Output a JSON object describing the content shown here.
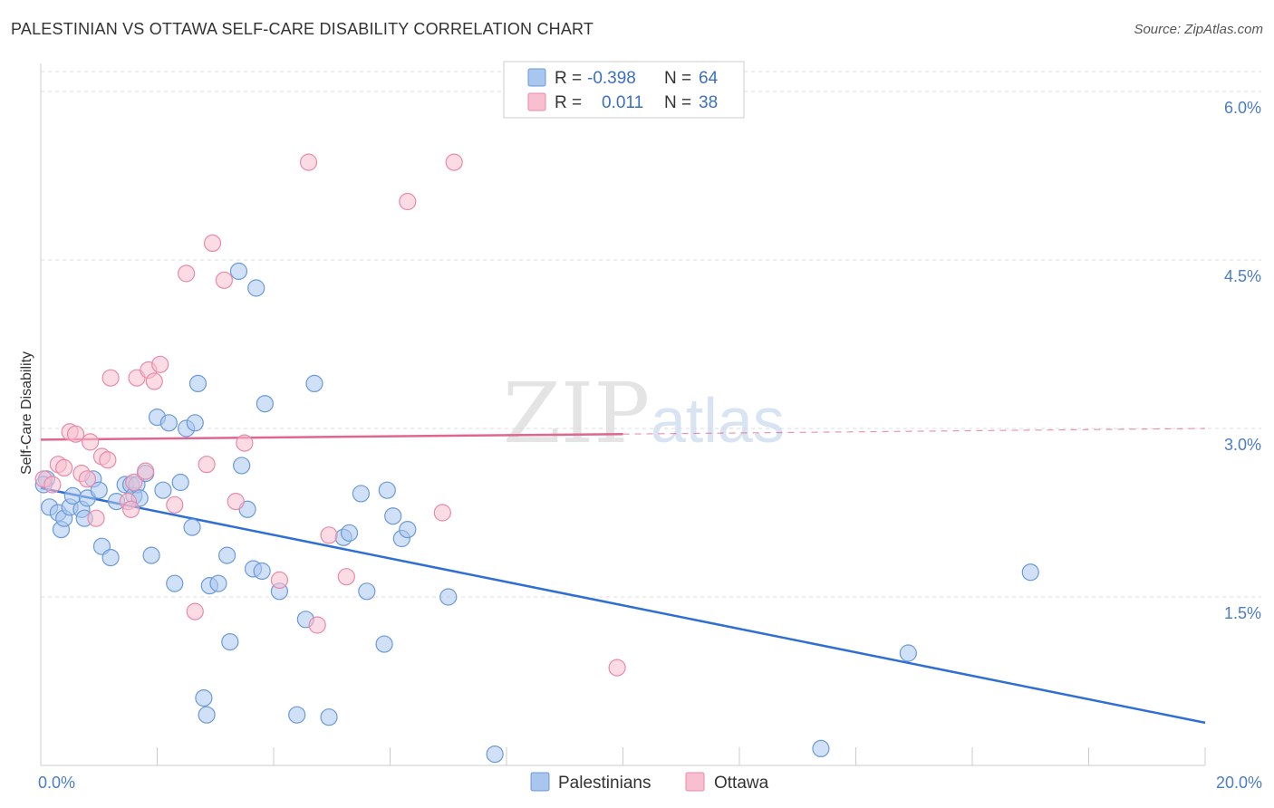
{
  "title": "PALESTINIAN VS OTTAWA SELF-CARE DISABILITY CORRELATION CHART",
  "source": "Source: ZipAtlas.com",
  "watermark": {
    "zip": "ZIP",
    "atlas": "atlas"
  },
  "colors": {
    "blue_fill": "#a9c6ee",
    "blue_stroke": "#6b9ad8",
    "blue_line": "#2f6fd3",
    "pink_fill": "#f7bfd0",
    "pink_stroke": "#e88aa8",
    "pink_line": "#e0668e",
    "grid": "#dddddd",
    "tick_text": "#4a7cc7"
  },
  "legend": {
    "rows": [
      {
        "r_label": "R =",
        "r_value": "-0.398",
        "n_label": "N =",
        "n_value": "64"
      },
      {
        "r_label": "R =",
        "r_value": "0.011",
        "n_label": "N =",
        "n_value": "38"
      }
    ]
  },
  "chart_data": {
    "type": "scatter",
    "title": "PALESTINIAN VS OTTAWA SELF-CARE DISABILITY CORRELATION CHART",
    "xlabel": "",
    "ylabel": "Self-Care Disability",
    "xlim": [
      0,
      20
    ],
    "ylim": [
      0,
      6.25
    ],
    "x_ticks": [
      {
        "value": 0,
        "label": "0.0%"
      },
      {
        "value": 20,
        "label": "20.0%"
      }
    ],
    "y_ticks": [
      {
        "value": 1.5,
        "label": "1.5%"
      },
      {
        "value": 3.0,
        "label": "3.0%"
      },
      {
        "value": 4.5,
        "label": "4.5%"
      },
      {
        "value": 6.0,
        "label": "6.0%"
      }
    ],
    "grid": true,
    "legend_position": "top-center",
    "series": [
      {
        "name": "Palestinians",
        "color": "#a9c6ee",
        "trend": {
          "x": [
            0,
            20
          ],
          "y": [
            2.47,
            0.38
          ],
          "solid_to": 20
        },
        "points": [
          [
            0.1,
            2.55
          ],
          [
            0.15,
            2.3
          ],
          [
            0.3,
            2.25
          ],
          [
            0.35,
            2.1
          ],
          [
            0.4,
            2.2
          ],
          [
            0.5,
            2.3
          ],
          [
            0.55,
            2.4
          ],
          [
            0.7,
            2.28
          ],
          [
            0.75,
            2.2
          ],
          [
            0.8,
            2.38
          ],
          [
            0.9,
            2.55
          ],
          [
            1.0,
            2.45
          ],
          [
            1.05,
            1.95
          ],
          [
            1.2,
            1.85
          ],
          [
            1.3,
            2.35
          ],
          [
            1.45,
            2.5
          ],
          [
            1.55,
            2.5
          ],
          [
            1.6,
            2.4
          ],
          [
            1.65,
            2.5
          ],
          [
            1.7,
            2.38
          ],
          [
            1.8,
            2.6
          ],
          [
            1.9,
            1.87
          ],
          [
            2.0,
            3.1
          ],
          [
            2.1,
            2.45
          ],
          [
            2.2,
            3.05
          ],
          [
            2.3,
            1.62
          ],
          [
            2.4,
            2.52
          ],
          [
            2.5,
            3.0
          ],
          [
            2.6,
            2.12
          ],
          [
            2.65,
            3.05
          ],
          [
            2.7,
            3.4
          ],
          [
            2.8,
            0.6
          ],
          [
            2.85,
            0.45
          ],
          [
            2.9,
            1.6
          ],
          [
            3.05,
            1.62
          ],
          [
            3.2,
            1.87
          ],
          [
            3.25,
            1.1
          ],
          [
            3.4,
            4.4
          ],
          [
            3.45,
            2.67
          ],
          [
            3.55,
            2.28
          ],
          [
            3.65,
            1.75
          ],
          [
            3.7,
            4.25
          ],
          [
            3.8,
            1.73
          ],
          [
            3.85,
            3.22
          ],
          [
            4.1,
            1.55
          ],
          [
            4.4,
            0.45
          ],
          [
            4.55,
            1.3
          ],
          [
            4.7,
            3.4
          ],
          [
            4.95,
            0.43
          ],
          [
            5.2,
            2.03
          ],
          [
            5.3,
            2.07
          ],
          [
            5.5,
            2.42
          ],
          [
            5.6,
            1.55
          ],
          [
            5.9,
            1.08
          ],
          [
            5.95,
            2.45
          ],
          [
            6.05,
            2.22
          ],
          [
            6.2,
            2.02
          ],
          [
            6.3,
            2.1
          ],
          [
            7.0,
            1.5
          ],
          [
            7.8,
            0.1
          ],
          [
            13.4,
            0.15
          ],
          [
            14.9,
            1.0
          ],
          [
            17.0,
            1.72
          ],
          [
            0.05,
            2.5
          ]
        ]
      },
      {
        "name": "Ottawa",
        "color": "#f7bfd0",
        "trend": {
          "x": [
            0,
            20
          ],
          "y": [
            2.9,
            3.0
          ],
          "solid_to": 10
        },
        "points": [
          [
            0.05,
            2.55
          ],
          [
            0.2,
            2.5
          ],
          [
            0.3,
            2.68
          ],
          [
            0.4,
            2.65
          ],
          [
            0.5,
            2.97
          ],
          [
            0.6,
            2.95
          ],
          [
            0.7,
            2.6
          ],
          [
            0.8,
            2.55
          ],
          [
            0.85,
            2.88
          ],
          [
            0.95,
            2.2
          ],
          [
            1.05,
            2.75
          ],
          [
            1.15,
            2.72
          ],
          [
            1.2,
            3.45
          ],
          [
            1.5,
            2.35
          ],
          [
            1.55,
            2.28
          ],
          [
            1.6,
            2.52
          ],
          [
            1.65,
            3.45
          ],
          [
            1.8,
            2.62
          ],
          [
            1.85,
            3.52
          ],
          [
            1.95,
            3.42
          ],
          [
            2.05,
            3.57
          ],
          [
            2.3,
            2.32
          ],
          [
            2.5,
            4.38
          ],
          [
            2.65,
            1.37
          ],
          [
            2.85,
            2.68
          ],
          [
            2.95,
            4.65
          ],
          [
            3.15,
            4.32
          ],
          [
            3.35,
            2.35
          ],
          [
            3.5,
            2.87
          ],
          [
            4.1,
            1.65
          ],
          [
            4.6,
            5.37
          ],
          [
            4.75,
            1.25
          ],
          [
            4.95,
            2.05
          ],
          [
            5.25,
            1.68
          ],
          [
            6.3,
            5.02
          ],
          [
            6.9,
            2.25
          ],
          [
            7.1,
            5.37
          ],
          [
            9.9,
            0.87
          ]
        ]
      }
    ]
  }
}
